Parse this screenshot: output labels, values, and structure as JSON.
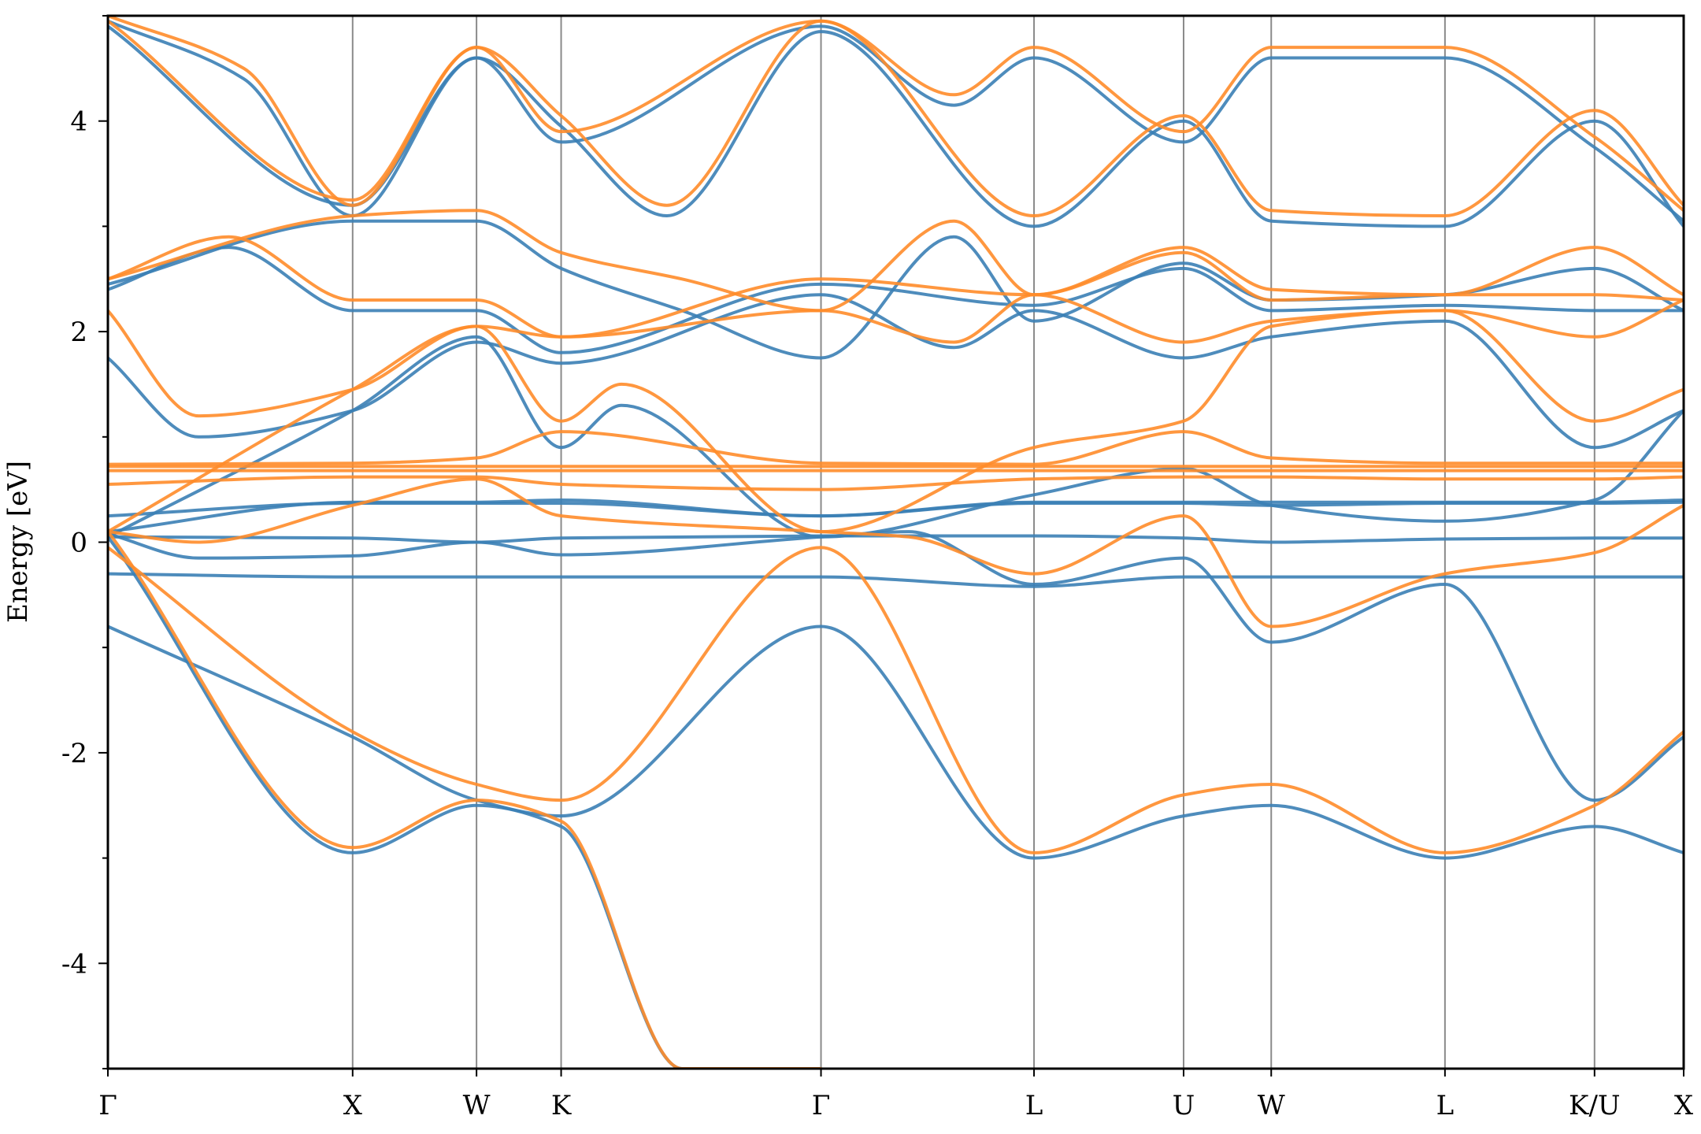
{
  "chart_data": {
    "type": "line",
    "title": "",
    "xlabel": "",
    "ylabel": "Energy [eV]",
    "ylim": [
      -5,
      5
    ],
    "yticks": [
      -4,
      -2,
      0,
      2,
      4
    ],
    "ytick_labels": [
      "-4",
      "-2",
      "0",
      "2",
      "4"
    ],
    "xlim": [
      0,
      10.43
    ],
    "kpoints": [
      {
        "label": "Γ",
        "x": 0
      },
      {
        "label": "X",
        "x": 1.62
      },
      {
        "label": "W",
        "x": 2.44
      },
      {
        "label": "K",
        "x": 3.0
      },
      {
        "label": "Γ",
        "x": 4.72
      },
      {
        "label": "L",
        "x": 6.13
      },
      {
        "label": "U",
        "x": 7.12
      },
      {
        "label": "W",
        "x": 7.7
      },
      {
        "label": "L",
        "x": 8.85
      },
      {
        "label": "K/U",
        "x": 9.84
      },
      {
        "label": "X",
        "x": 10.43
      }
    ],
    "grid": "vertical lines at high-symmetry points",
    "legend": "none",
    "series": [
      {
        "color": "#3b7fb5",
        "bands": [
          {
            "x": [
              0,
              1.62,
              2.44,
              3.0,
              4.72,
              6.13,
              7.12,
              7.7,
              8.85,
              9.84,
              10.43
            ],
            "y": [
              -0.8,
              -1.85,
              -2.45,
              -2.6,
              -0.8,
              -3.0,
              -2.6,
              -2.5,
              -3.0,
              -2.7,
              -2.95
            ]
          },
          {
            "x": [
              0,
              1.62,
              2.44,
              3.0,
              3.8,
              4.72
            ],
            "y": [
              0.05,
              -2.95,
              -2.5,
              -2.7,
              -5.0,
              -5.0
            ]
          },
          {
            "x": [
              0,
              0.6,
              1.62,
              2.44,
              3.0,
              4.72,
              5.3,
              6.13,
              7.12,
              7.7,
              8.85,
              9.84,
              10.43
            ],
            "y": [
              0.08,
              -0.15,
              -0.13,
              -0.0,
              -0.12,
              0.05,
              0.1,
              -0.4,
              -0.15,
              -0.95,
              -0.4,
              -2.45,
              -1.85
            ]
          },
          {
            "x": [
              0,
              1.62,
              2.44,
              3.0,
              4.72,
              6.13,
              7.12,
              7.7,
              8.85,
              9.84,
              10.43
            ],
            "y": [
              -0.3,
              -0.33,
              -0.33,
              -0.33,
              -0.33,
              -0.42,
              -0.33,
              -0.33,
              -0.33,
              -0.33,
              -0.33
            ]
          },
          {
            "x": [
              0,
              1.62,
              2.44,
              3.0,
              4.72,
              6.13,
              7.12,
              7.7,
              8.85,
              9.84,
              10.43
            ],
            "y": [
              0.05,
              0.04,
              0.0,
              0.04,
              0.06,
              0.06,
              0.04,
              0.0,
              0.03,
              0.04,
              0.04
            ]
          },
          {
            "x": [
              0,
              1.62,
              2.44,
              3.0,
              4.72,
              6.13,
              7.12,
              7.7,
              8.85,
              9.84,
              10.43
            ],
            "y": [
              0.25,
              0.37,
              0.37,
              0.37,
              0.25,
              0.37,
              0.37,
              0.35,
              0.37,
              0.37,
              0.38
            ]
          },
          {
            "x": [
              0,
              1.62,
              2.44,
              3.0,
              4.72,
              6.13,
              7.12,
              7.7,
              8.85,
              9.84,
              10.43
            ],
            "y": [
              0.1,
              0.38,
              0.38,
              0.4,
              0.25,
              0.38,
              0.38,
              0.38,
              0.38,
              0.38,
              0.4
            ]
          },
          {
            "x": [
              0,
              1.62,
              2.44,
              3.0,
              3.4,
              4.72,
              6.13,
              7.12,
              7.7,
              8.85,
              9.84,
              10.43
            ],
            "y": [
              0.05,
              1.25,
              1.95,
              0.9,
              1.3,
              0.05,
              0.45,
              0.7,
              0.35,
              0.2,
              0.4,
              1.25
            ]
          },
          {
            "x": [
              0,
              0.8,
              1.62,
              2.44,
              3.0,
              4.72,
              6.13,
              7.12,
              7.7,
              8.85,
              9.84,
              10.43
            ],
            "y": [
              2.4,
              2.8,
              2.2,
              2.2,
              1.8,
              2.45,
              2.25,
              2.6,
              2.2,
              2.25,
              2.2,
              2.2
            ]
          },
          {
            "x": [
              0,
              0.6,
              1.62,
              2.44,
              3.0,
              4.72,
              5.6,
              6.13,
              7.12,
              7.7,
              8.85,
              9.84,
              10.43
            ],
            "y": [
              1.75,
              1.0,
              1.25,
              1.9,
              1.7,
              2.35,
              1.85,
              2.2,
              1.75,
              1.95,
              2.1,
              0.9,
              1.25
            ]
          },
          {
            "x": [
              0,
              1.62,
              2.44,
              3.0,
              3.8,
              4.72,
              5.6,
              6.13,
              7.12,
              7.7,
              8.85,
              9.84,
              10.43
            ],
            "y": [
              2.45,
              3.05,
              3.05,
              2.6,
              2.2,
              1.75,
              2.9,
              2.1,
              2.65,
              2.3,
              2.35,
              2.6,
              2.2
            ]
          },
          {
            "x": [
              0,
              1.62,
              2.44,
              3.0,
              4.72,
              5.6,
              6.13,
              7.12,
              7.7,
              8.85,
              9.84,
              10.43
            ],
            "y": [
              4.9,
              3.2,
              4.6,
              3.8,
              4.9,
              4.15,
              4.6,
              3.8,
              4.6,
              4.6,
              3.75,
              3.05
            ]
          },
          {
            "x": [
              0,
              0.9,
              1.62,
              2.44,
              3.0,
              3.7,
              4.72,
              6.13,
              7.12,
              7.7,
              8.85,
              9.84,
              10.43
            ],
            "y": [
              4.95,
              4.4,
              3.1,
              4.6,
              3.95,
              3.1,
              4.85,
              3.0,
              4.0,
              3.05,
              3.0,
              4.0,
              3.0
            ]
          }
        ]
      },
      {
        "color": "#ff8c2a",
        "bands": [
          {
            "x": [
              0,
              1.62,
              2.44,
              3.0,
              4.72,
              6.13,
              7.12,
              7.7,
              8.85,
              9.84,
              10.43
            ],
            "y": [
              -0.05,
              -1.8,
              -2.3,
              -2.45,
              -0.05,
              -2.95,
              -2.4,
              -2.3,
              -2.95,
              -2.5,
              -1.8
            ]
          },
          {
            "x": [
              0,
              1.62,
              2.44,
              3.0,
              3.8,
              4.72
            ],
            "y": [
              0.1,
              -2.9,
              -2.45,
              -2.65,
              -5.0,
              -5.0
            ]
          },
          {
            "x": [
              0,
              0.6,
              1.62,
              2.44,
              3.0,
              4.72,
              5.3,
              6.13,
              7.12,
              7.7,
              8.85,
              9.84,
              10.43
            ],
            "y": [
              0.1,
              0.0,
              0.35,
              0.6,
              0.25,
              0.1,
              0.05,
              -0.3,
              0.25,
              -0.8,
              -0.3,
              -0.1,
              0.35
            ]
          },
          {
            "x": [
              0,
              1.62,
              2.44,
              3.0,
              4.72,
              6.13,
              7.12,
              7.7,
              8.85,
              9.84,
              10.43
            ],
            "y": [
              0.55,
              0.62,
              0.62,
              0.55,
              0.5,
              0.6,
              0.62,
              0.62,
              0.6,
              0.6,
              0.62
            ]
          },
          {
            "x": [
              0,
              1.62,
              2.44,
              3.0,
              4.72,
              6.13,
              7.12,
              7.7,
              8.85,
              9.84,
              10.43
            ],
            "y": [
              0.68,
              0.68,
              0.68,
              0.68,
              0.68,
              0.68,
              0.68,
              0.68,
              0.68,
              0.68,
              0.68
            ]
          },
          {
            "x": [
              0,
              1.62,
              2.44,
              3.0,
              4.72,
              6.13,
              7.12,
              7.7,
              8.85,
              9.84,
              10.43
            ],
            "y": [
              0.72,
              0.72,
              0.72,
              0.72,
              0.72,
              0.72,
              0.72,
              0.72,
              0.72,
              0.72,
              0.72
            ]
          },
          {
            "x": [
              0,
              1.62,
              2.44,
              3.0,
              4.72,
              6.13,
              7.12,
              7.7,
              8.85,
              9.84,
              10.43
            ],
            "y": [
              0.74,
              0.75,
              0.8,
              1.05,
              0.75,
              0.74,
              1.05,
              0.8,
              0.75,
              0.75,
              0.75
            ]
          },
          {
            "x": [
              0,
              1.62,
              2.44,
              3.0,
              3.4,
              4.72,
              6.13,
              7.12,
              7.7,
              8.85,
              9.84,
              10.43
            ],
            "y": [
              0.1,
              1.45,
              2.05,
              1.15,
              1.5,
              0.1,
              0.9,
              1.15,
              2.05,
              2.2,
              1.15,
              1.45
            ]
          },
          {
            "x": [
              0,
              0.8,
              1.62,
              2.44,
              3.0,
              4.72,
              6.13,
              7.12,
              7.7,
              8.85,
              9.84,
              10.43
            ],
            "y": [
              2.5,
              2.9,
              2.3,
              2.3,
              1.95,
              2.5,
              2.35,
              2.75,
              2.3,
              2.35,
              2.35,
              2.3
            ]
          },
          {
            "x": [
              0,
              0.6,
              1.62,
              2.44,
              3.0,
              4.72,
              5.6,
              6.13,
              7.12,
              7.7,
              8.85,
              9.84,
              10.43
            ],
            "y": [
              2.2,
              1.2,
              1.45,
              2.05,
              1.95,
              2.2,
              1.9,
              2.35,
              1.9,
              2.1,
              2.2,
              1.95,
              2.3
            ]
          },
          {
            "x": [
              0,
              1.62,
              2.44,
              3.0,
              3.8,
              4.72,
              5.6,
              6.13,
              7.12,
              7.7,
              8.85,
              9.84,
              10.43
            ],
            "y": [
              2.5,
              3.1,
              3.15,
              2.75,
              2.5,
              2.2,
              3.05,
              2.35,
              2.8,
              2.4,
              2.35,
              2.8,
              2.35
            ]
          },
          {
            "x": [
              0,
              1.62,
              2.44,
              3.0,
              4.72,
              5.6,
              6.13,
              7.12,
              7.7,
              8.85,
              9.84,
              10.43
            ],
            "y": [
              4.95,
              3.25,
              4.7,
              3.9,
              4.95,
              4.25,
              4.7,
              3.9,
              4.7,
              4.7,
              3.85,
              3.15
            ]
          },
          {
            "x": [
              0,
              0.9,
              1.62,
              2.44,
              3.0,
              3.7,
              4.72,
              6.13,
              7.12,
              7.7,
              8.85,
              9.84,
              10.43
            ],
            "y": [
              5.0,
              4.5,
              3.2,
              4.7,
              4.05,
              3.2,
              4.95,
              3.1,
              4.05,
              3.15,
              3.1,
              4.1,
              3.2
            ]
          }
        ]
      }
    ]
  }
}
